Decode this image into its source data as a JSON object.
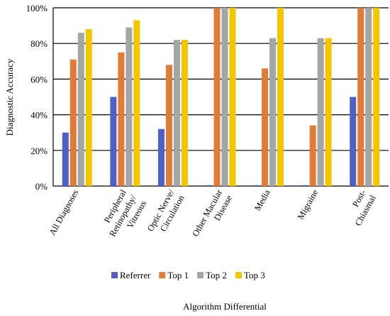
{
  "chart_data": {
    "type": "bar",
    "ylabel": "Diagnostic Accuracy",
    "xlabel": "Algorithm Differential",
    "ylim": [
      0,
      100
    ],
    "yticks": [
      0,
      20,
      40,
      60,
      80,
      100
    ],
    "ytick_labels": [
      "0%",
      "20%",
      "40%",
      "60%",
      "80%",
      "100%"
    ],
    "grid": true,
    "legend_position": "bottom",
    "categories": [
      [
        "All Diagnoses"
      ],
      [
        "Peripheral",
        "Retinopathy/",
        "Vitreous"
      ],
      [
        "Optic Nerve/",
        "Circulation"
      ],
      [
        "Other Macular",
        "Disease"
      ],
      [
        "Media"
      ],
      [
        "Migraine"
      ],
      [
        "Post-",
        "Chiasmal"
      ]
    ],
    "series": [
      {
        "name": "Referrer",
        "color": "#4f5fc4",
        "values": [
          30,
          50,
          32,
          0.5,
          0.5,
          0.5,
          50
        ]
      },
      {
        "name": "Top 1",
        "color": "#e07b39",
        "values": [
          71,
          75,
          68,
          100,
          66,
          34,
          100
        ]
      },
      {
        "name": "Top 2",
        "color": "#a5a5a5",
        "values": [
          86,
          89,
          82,
          100,
          83,
          83,
          100
        ]
      },
      {
        "name": "Top 3",
        "color": "#f2c500",
        "values": [
          88,
          93,
          82,
          100,
          100,
          83,
          100
        ]
      }
    ]
  }
}
